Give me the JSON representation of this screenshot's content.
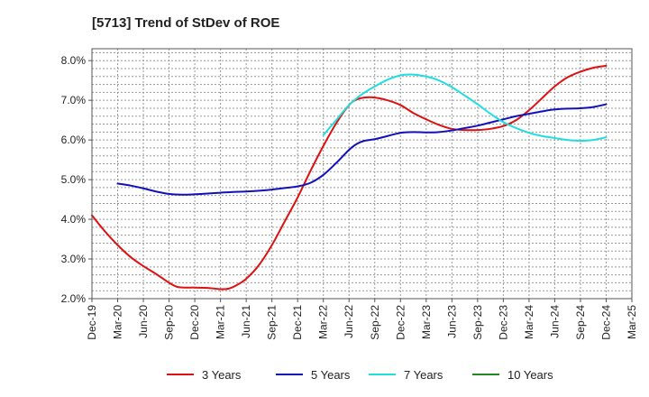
{
  "chart_data": {
    "type": "line",
    "title": "[5713]  Trend of StDev of ROE",
    "xlabel": "",
    "ylabel": "",
    "ylim": [
      2.0,
      8.3
    ],
    "y_ticks": [
      2.0,
      3.0,
      4.0,
      5.0,
      6.0,
      7.0,
      8.0
    ],
    "y_tick_labels": [
      "2.0%",
      "3.0%",
      "4.0%",
      "5.0%",
      "6.0%",
      "7.0%",
      "8.0%"
    ],
    "x_tick_labels": [
      "Dec-19",
      "Mar-20",
      "Jun-20",
      "Sep-20",
      "Dec-20",
      "Mar-21",
      "Jun-21",
      "Sep-21",
      "Dec-21",
      "Mar-22",
      "Jun-22",
      "Sep-22",
      "Dec-22",
      "Mar-23",
      "Jun-23",
      "Sep-23",
      "Dec-23",
      "Mar-24",
      "Jun-24",
      "Sep-24",
      "Dec-24",
      "Mar-25"
    ],
    "grid": true,
    "legend_position": "bottom",
    "series": [
      {
        "name": "3 Years",
        "color": "#dd1111",
        "points": [
          [
            0,
            4.1
          ],
          [
            0.5,
            3.7
          ],
          [
            1,
            3.35
          ],
          [
            1.5,
            3.05
          ],
          [
            2,
            2.82
          ],
          [
            2.5,
            2.62
          ],
          [
            3,
            2.4
          ],
          [
            3.3,
            2.3
          ],
          [
            3.6,
            2.28
          ],
          [
            4,
            2.28
          ],
          [
            4.5,
            2.27
          ],
          [
            5,
            2.24
          ],
          [
            5.3,
            2.25
          ],
          [
            5.6,
            2.33
          ],
          [
            6,
            2.5
          ],
          [
            6.5,
            2.85
          ],
          [
            7,
            3.35
          ],
          [
            7.5,
            3.95
          ],
          [
            8,
            4.55
          ],
          [
            8.5,
            5.22
          ],
          [
            9,
            5.85
          ],
          [
            9.5,
            6.42
          ],
          [
            10,
            6.88
          ],
          [
            10.3,
            7.02
          ],
          [
            10.6,
            7.07
          ],
          [
            11,
            7.07
          ],
          [
            11.5,
            7.0
          ],
          [
            12,
            6.88
          ],
          [
            12.5,
            6.68
          ],
          [
            13,
            6.52
          ],
          [
            13.5,
            6.38
          ],
          [
            14,
            6.28
          ],
          [
            14.5,
            6.25
          ],
          [
            15,
            6.25
          ],
          [
            15.5,
            6.28
          ],
          [
            16,
            6.35
          ],
          [
            16.5,
            6.5
          ],
          [
            17,
            6.75
          ],
          [
            17.5,
            7.05
          ],
          [
            18,
            7.35
          ],
          [
            18.5,
            7.58
          ],
          [
            19,
            7.72
          ],
          [
            19.5,
            7.82
          ],
          [
            20,
            7.87
          ]
        ]
      },
      {
        "name": "5 Years",
        "color": "#1111bb",
        "points": [
          [
            1,
            4.9
          ],
          [
            1.5,
            4.85
          ],
          [
            2,
            4.78
          ],
          [
            2.5,
            4.7
          ],
          [
            3,
            4.64
          ],
          [
            3.5,
            4.62
          ],
          [
            4,
            4.63
          ],
          [
            4.5,
            4.65
          ],
          [
            5,
            4.67
          ],
          [
            5.5,
            4.69
          ],
          [
            6,
            4.7
          ],
          [
            6.5,
            4.72
          ],
          [
            7,
            4.75
          ],
          [
            7.5,
            4.79
          ],
          [
            8,
            4.83
          ],
          [
            8.5,
            4.92
          ],
          [
            9,
            5.12
          ],
          [
            9.5,
            5.42
          ],
          [
            10,
            5.75
          ],
          [
            10.3,
            5.9
          ],
          [
            10.6,
            5.98
          ],
          [
            11,
            6.02
          ],
          [
            11.5,
            6.1
          ],
          [
            12,
            6.18
          ],
          [
            12.5,
            6.2
          ],
          [
            13,
            6.19
          ],
          [
            13.5,
            6.2
          ],
          [
            14,
            6.24
          ],
          [
            14.5,
            6.3
          ],
          [
            15,
            6.36
          ],
          [
            15.5,
            6.44
          ],
          [
            16,
            6.52
          ],
          [
            16.5,
            6.6
          ],
          [
            17,
            6.66
          ],
          [
            17.5,
            6.72
          ],
          [
            18,
            6.77
          ],
          [
            18.5,
            6.79
          ],
          [
            19,
            6.8
          ],
          [
            19.5,
            6.83
          ],
          [
            20,
            6.9
          ]
        ]
      },
      {
        "name": "7 Years",
        "color": "#22dddd",
        "points": [
          [
            9,
            6.12
          ],
          [
            9.5,
            6.5
          ],
          [
            10,
            6.88
          ],
          [
            10.5,
            7.15
          ],
          [
            11,
            7.35
          ],
          [
            11.5,
            7.52
          ],
          [
            12,
            7.63
          ],
          [
            12.5,
            7.65
          ],
          [
            13,
            7.6
          ],
          [
            13.5,
            7.5
          ],
          [
            14,
            7.33
          ],
          [
            14.5,
            7.12
          ],
          [
            15,
            6.9
          ],
          [
            15.5,
            6.66
          ],
          [
            16,
            6.45
          ],
          [
            16.5,
            6.3
          ],
          [
            17,
            6.18
          ],
          [
            17.5,
            6.1
          ],
          [
            18,
            6.05
          ],
          [
            18.5,
            6.0
          ],
          [
            19,
            5.98
          ],
          [
            19.5,
            6.0
          ],
          [
            20,
            6.07
          ]
        ]
      },
      {
        "name": "10 Years",
        "color": "#228822",
        "points": []
      }
    ]
  }
}
